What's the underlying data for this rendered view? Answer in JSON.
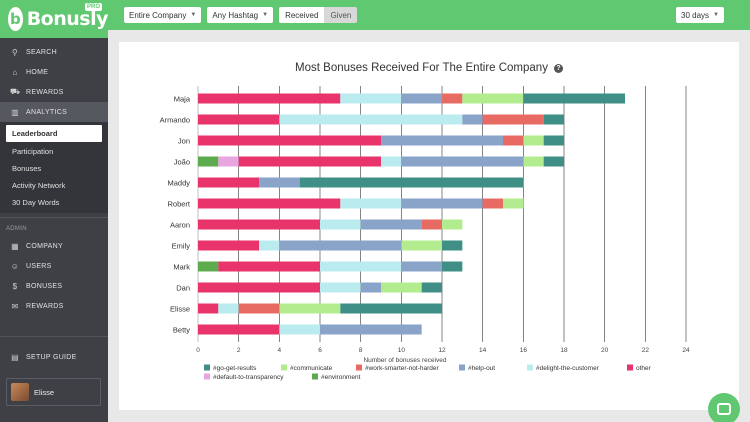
{
  "brand": {
    "name": "Bonusly",
    "badge": "PRO",
    "color": "#5fc870"
  },
  "sidebar": {
    "nav": [
      {
        "label": "SEARCH",
        "icon": "search-icon",
        "glyph": "⚲"
      },
      {
        "label": "HOME",
        "icon": "home-icon",
        "glyph": "⌂"
      },
      {
        "label": "REWARDS",
        "icon": "cart-icon",
        "glyph": "⛟"
      },
      {
        "label": "ANALYTICS",
        "icon": "chart-icon",
        "glyph": "▥"
      }
    ],
    "analytics_sub": [
      "Leaderboard",
      "Participation",
      "Bonuses",
      "Activity Network",
      "30 Day Words"
    ],
    "admin_label": "ADMIN",
    "admin": [
      {
        "label": "COMPANY",
        "icon": "building-icon",
        "glyph": "▦"
      },
      {
        "label": "USERS",
        "icon": "users-icon",
        "glyph": "☺"
      },
      {
        "label": "BONUSES",
        "icon": "dollar-icon",
        "glyph": "$"
      },
      {
        "label": "REWARDS",
        "icon": "gift-icon",
        "glyph": "✉"
      }
    ],
    "setup": {
      "label": "SETUP GUIDE",
      "icon": "book-icon",
      "glyph": "▤"
    },
    "user": {
      "name": "Elisse"
    }
  },
  "topbar": {
    "company_filter": "Entire Company",
    "hashtag_filter": "Any Hashtag",
    "received_label": "Received",
    "given_label": "Given",
    "range": "30 days"
  },
  "chart_data": {
    "type": "bar",
    "orientation": "horizontal",
    "stacked": true,
    "title": "Most Bonuses Received For The Entire Company",
    "xlabel": "Number of bonuses received",
    "xlim": [
      0,
      24
    ],
    "xticks": [
      0,
      2,
      4,
      6,
      8,
      10,
      12,
      14,
      16,
      18,
      20,
      22,
      24
    ],
    "grid": true,
    "legend_position": "bottom",
    "categories": [
      "Maja",
      "Armando",
      "Jon",
      "João",
      "Maddy",
      "Robert",
      "Aaron",
      "Emily",
      "Mark",
      "Dan",
      "Elisse",
      "Betty"
    ],
    "series": [
      {
        "name": "#environment",
        "color": "#5cab4c",
        "values": [
          0,
          0,
          0,
          1,
          0,
          0,
          0,
          0,
          1,
          0,
          0,
          0
        ]
      },
      {
        "name": "#default-to-transparency",
        "color": "#e8a6e0",
        "values": [
          0,
          0,
          0,
          1,
          0,
          0,
          0,
          0,
          0,
          0,
          0,
          0
        ]
      },
      {
        "name": "other",
        "color": "#e8336b",
        "values": [
          7,
          4,
          9,
          7,
          3,
          7,
          6,
          3,
          5,
          6,
          1,
          4
        ]
      },
      {
        "name": "#delight-the-customer",
        "color": "#b9ebef",
        "values": [
          3,
          9,
          0,
          1,
          0,
          3,
          2,
          1,
          4,
          2,
          1,
          2
        ]
      },
      {
        "name": "#help-out",
        "color": "#8aa3c8",
        "values": [
          2,
          1,
          6,
          6,
          2,
          4,
          3,
          6,
          2,
          1,
          0,
          5
        ]
      },
      {
        "name": "#work-smarter-not-harder",
        "color": "#e86b63",
        "values": [
          1,
          3,
          1,
          0,
          0,
          1,
          1,
          0,
          0,
          0,
          2,
          0
        ]
      },
      {
        "name": "#communicate",
        "color": "#b3ec8f",
        "values": [
          3,
          0,
          1,
          1,
          0,
          1,
          1,
          2,
          0,
          2,
          3,
          0
        ]
      },
      {
        "name": "#go-get-results",
        "color": "#3f8f86",
        "values": [
          5,
          1,
          1,
          1,
          11,
          0,
          0,
          1,
          1,
          1,
          5,
          0
        ]
      }
    ],
    "legend_order": [
      "#go-get-results",
      "#communicate",
      "#work-smarter-not-harder",
      "#help-out",
      "#delight-the-customer",
      "other",
      "#default-to-transparency",
      "#environment"
    ]
  }
}
